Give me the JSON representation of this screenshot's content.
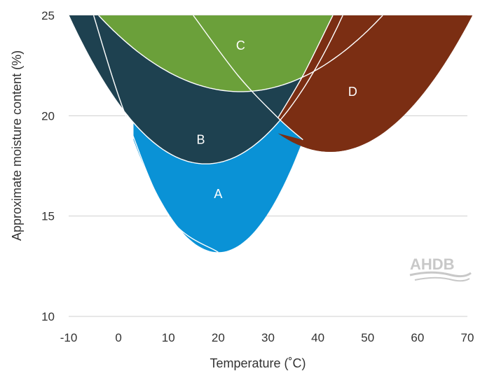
{
  "chart_data": {
    "type": "area",
    "title": "",
    "xlabel": "Temperature (˚C)",
    "ylabel": "Approximate moisture content (%)",
    "xlim": [
      -10,
      70
    ],
    "ylim": [
      10,
      25
    ],
    "x_ticks": [
      -10,
      0,
      10,
      20,
      30,
      40,
      50,
      60,
      70
    ],
    "y_ticks": [
      10,
      15,
      20,
      25
    ],
    "grid": true,
    "regions": [
      {
        "name": "A",
        "color": "#0a92d6",
        "label_at": [
          20,
          16.1
        ]
      },
      {
        "name": "B",
        "color": "#1e4150",
        "label_at": [
          16.5,
          18.8
        ]
      },
      {
        "name": "C",
        "color": "#6ba03a",
        "label_at": [
          24.5,
          23.5
        ]
      },
      {
        "name": "D",
        "color": "#7b2e13",
        "label_at": [
          47,
          21.2
        ]
      }
    ],
    "curves": [
      {
        "id": "B_lower",
        "vertex": [
          17.5,
          17.6
        ],
        "through": [
          -10,
          25
        ]
      },
      {
        "id": "A_lower",
        "vertex": [
          20,
          13.2
        ],
        "through": [
          37,
          18.8
        ]
      },
      {
        "id": "C_lower",
        "vertex": [
          24.5,
          21.2
        ],
        "through": [
          -4,
          25
        ]
      },
      {
        "id": "D_lower",
        "vertex": [
          42.5,
          18.2
        ],
        "through": [
          71,
          25
        ]
      },
      {
        "id": "line_left",
        "through": [
          [
            -5,
            25
          ],
          [
            1,
            20.3
          ],
          [
            10,
            15
          ],
          [
            20,
            13.2
          ]
        ]
      },
      {
        "id": "line_down",
        "through": [
          [
            15,
            25
          ],
          [
            24,
            22
          ],
          [
            32,
            19.9
          ],
          [
            37,
            18.8
          ]
        ]
      },
      {
        "id": "line_up",
        "through": [
          [
            32,
            19.9
          ],
          [
            37,
            22
          ],
          [
            43,
            25
          ]
        ]
      }
    ]
  },
  "logo": {
    "text": "AHDB"
  }
}
